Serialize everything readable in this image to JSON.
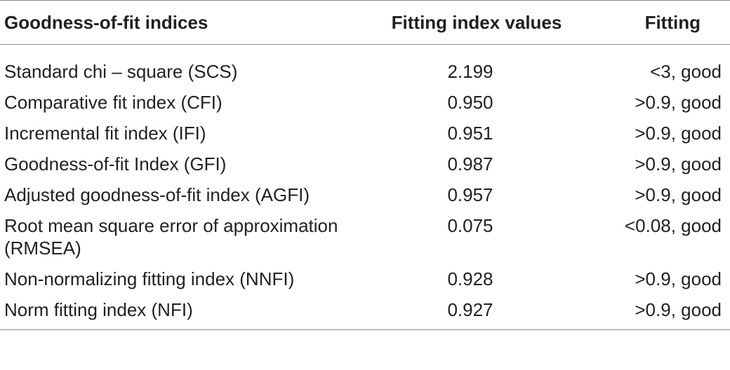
{
  "table": {
    "headers": [
      "Goodness-of-fit indices",
      "Fitting index values",
      "Fitting"
    ],
    "rows": [
      {
        "index": "Standard chi – square (SCS)",
        "value": "2.199",
        "fitting": "<3, good"
      },
      {
        "index": "Comparative fit index (CFI)",
        "value": "0.950",
        "fitting": ">0.9, good"
      },
      {
        "index": "Incremental fit index (IFI)",
        "value": "0.951",
        "fitting": ">0.9, good"
      },
      {
        "index": "Goodness-of-fit Index (GFI)",
        "value": "0.987",
        "fitting": ">0.9, good"
      },
      {
        "index": "Adjusted goodness-of-fit index (AGFI)",
        "value": "0.957",
        "fitting": ">0.9, good"
      },
      {
        "index": "Root mean square error of approximation (RMSEA)",
        "value": "0.075",
        "fitting": "<0.08, good"
      },
      {
        "index": "Non-normalizing fitting index (NNFI)",
        "value": "0.928",
        "fitting": ">0.9, good"
      },
      {
        "index": "Norm fitting index (NFI)",
        "value": "0.927",
        "fitting": ">0.9, good"
      }
    ]
  }
}
